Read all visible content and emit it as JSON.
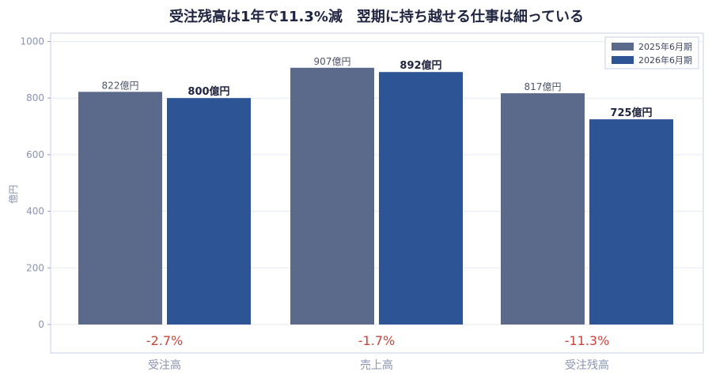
{
  "chart_data": {
    "type": "bar",
    "title": "受注残高は1年で11.3%減　翌期に持ち越せる仕事は細っている",
    "ylabel": "億円",
    "ylim": [
      -100,
      1030
    ],
    "yticks": [
      0,
      200,
      400,
      600,
      800,
      1000
    ],
    "grid": true,
    "legend_position": "top-right",
    "categories": [
      "受注高",
      "売上高",
      "受注残高"
    ],
    "series": [
      {
        "name": "2025年6月期",
        "values": [
          822,
          907,
          817
        ],
        "labels": [
          "822億円",
          "907億円",
          "817億円"
        ],
        "color": "#5b6a8a"
      },
      {
        "name": "2026年6月期",
        "values": [
          800,
          892,
          725
        ],
        "labels": [
          "800億円",
          "892億円",
          "725億円"
        ],
        "color": "#2d5596"
      }
    ],
    "change_labels": [
      "-2.7%",
      "-1.7%",
      "-11.3%"
    ],
    "change_color": "#c8453c"
  }
}
